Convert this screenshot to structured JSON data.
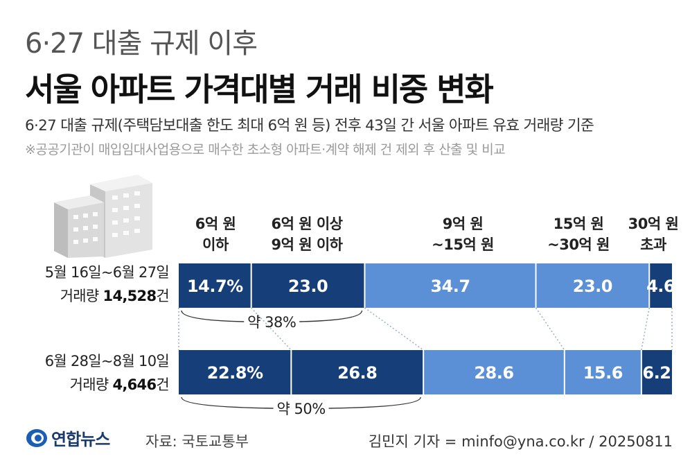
{
  "header": {
    "title_line1": "6·27 대출 규제 이후",
    "title_line2": "서울 아파트 가격대별 거래 비중 변화",
    "subtitle": "6·27 대출 규제(주택담보대출 한도 최대 6억 원 등) 전후 43일 간 서울 아파트 유효 거래량 기준",
    "note": "※공공기관이 매입임대사업용으로 매수한 초소형 아파트·계약 해제 건 제외 후 산출 및 비교"
  },
  "categories": [
    {
      "line1": "6억 원",
      "line2": "이하",
      "color": "#163f7a"
    },
    {
      "line1": "6억 원 이상",
      "line2": "9억 원 이하",
      "color": "#163f7a"
    },
    {
      "line1": "9억 원",
      "line2": "~15억 원",
      "color": "#5b8fd6"
    },
    {
      "line1": "15억 원",
      "line2": "~30억 원",
      "color": "#5b8fd6"
    },
    {
      "line1": "30억 원",
      "line2": "초과",
      "color": "#163f7a"
    }
  ],
  "rows": [
    {
      "period": "5월 16일~6월 27일",
      "volume_prefix": "거래량 ",
      "volume": "14,528",
      "volume_suffix": "건"
    },
    {
      "period": "6월 28일~8월 10일",
      "volume_prefix": "거래량 ",
      "volume": "4,646",
      "volume_suffix": "건"
    }
  ],
  "annotations": [
    "약 38%",
    "약 50%"
  ],
  "footer": {
    "brand": "연합뉴스",
    "source": "자료: 국토교통부",
    "credit": "김민지 기자 = minfo@yna.co.kr / 20250811"
  },
  "colors": {
    "dark": "#163f7a",
    "light": "#5b8fd6",
    "divider": "#ffffff",
    "connector": "#9db3d0"
  },
  "chart_data": {
    "type": "bar",
    "stacked": true,
    "orientation": "horizontal",
    "categories": [
      "5월 16일~6월 27일",
      "6월 28일~8월 10일"
    ],
    "series": [
      {
        "name": "6억 원 이하",
        "values": [
          14.7,
          22.8
        ],
        "labels": [
          "14.7%",
          "22.8%"
        ]
      },
      {
        "name": "6억 원 이상 9억 원 이하",
        "values": [
          23.0,
          26.8
        ],
        "labels": [
          "23.0",
          "26.8"
        ]
      },
      {
        "name": "9억 원 ~15억 원",
        "values": [
          34.7,
          28.6
        ],
        "labels": [
          "34.7",
          "28.6"
        ]
      },
      {
        "name": "15억 원 ~30억 원",
        "values": [
          23.0,
          15.6
        ],
        "labels": [
          "23.0",
          "15.6"
        ]
      },
      {
        "name": "30억 원 초과",
        "values": [
          4.6,
          6.2
        ],
        "labels": [
          "4.6",
          "6.2"
        ]
      }
    ],
    "xlim": [
      0,
      100
    ]
  }
}
